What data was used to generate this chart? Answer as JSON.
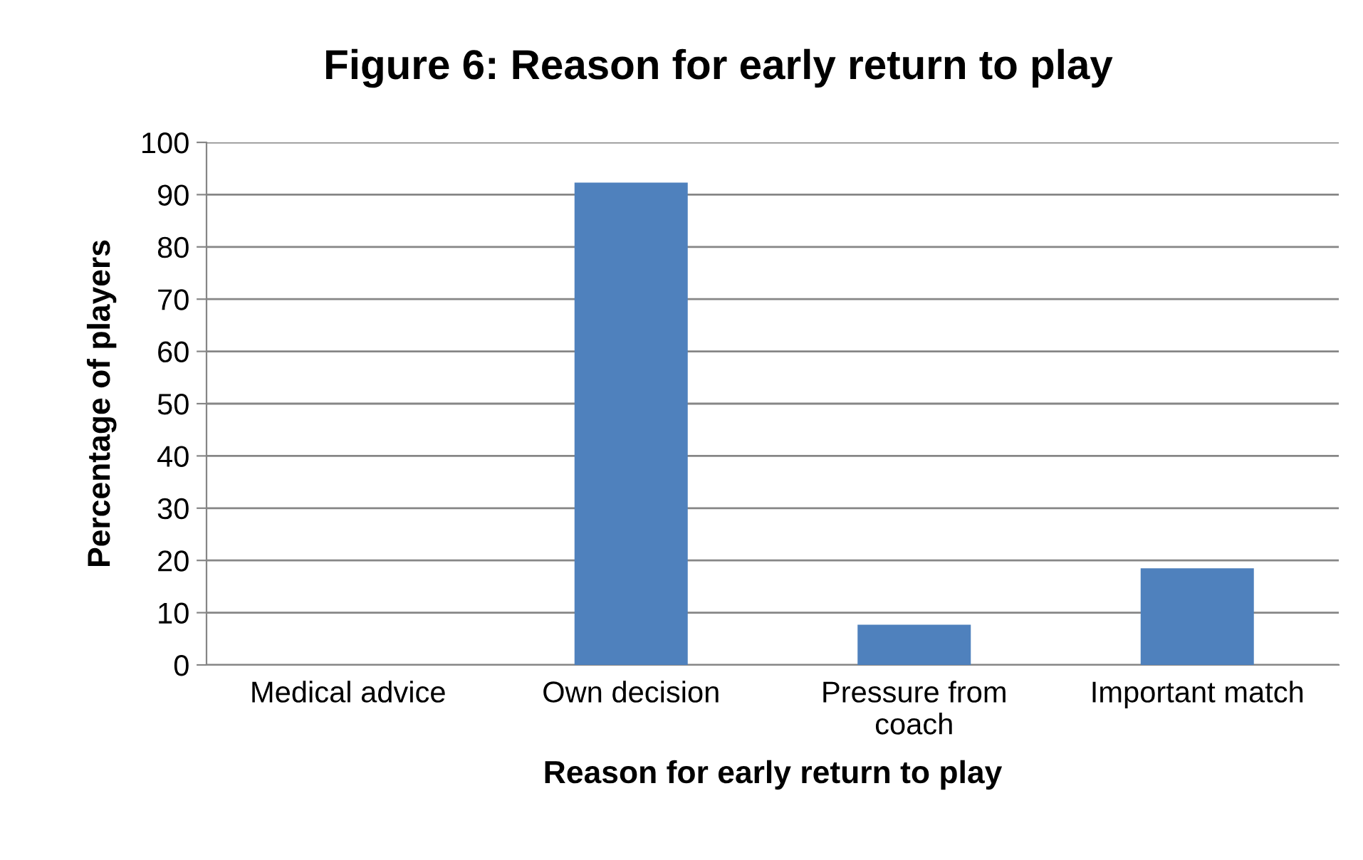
{
  "chart_data": {
    "type": "bar",
    "title": "Figure 6: Reason for early return to play",
    "xlabel": "Reason for early return to play",
    "ylabel": "Percentage of players",
    "categories": [
      "Medical advice",
      "Own decision",
      "Pressure from\ncoach",
      "Important match"
    ],
    "values": [
      0,
      92.3,
      7.7,
      18.5
    ],
    "color": "#4f81bd",
    "ylim": [
      0,
      100
    ],
    "yticks": [
      0,
      10,
      20,
      30,
      40,
      50,
      60,
      70,
      80,
      90,
      100
    ],
    "grid": "y",
    "legend": false
  }
}
